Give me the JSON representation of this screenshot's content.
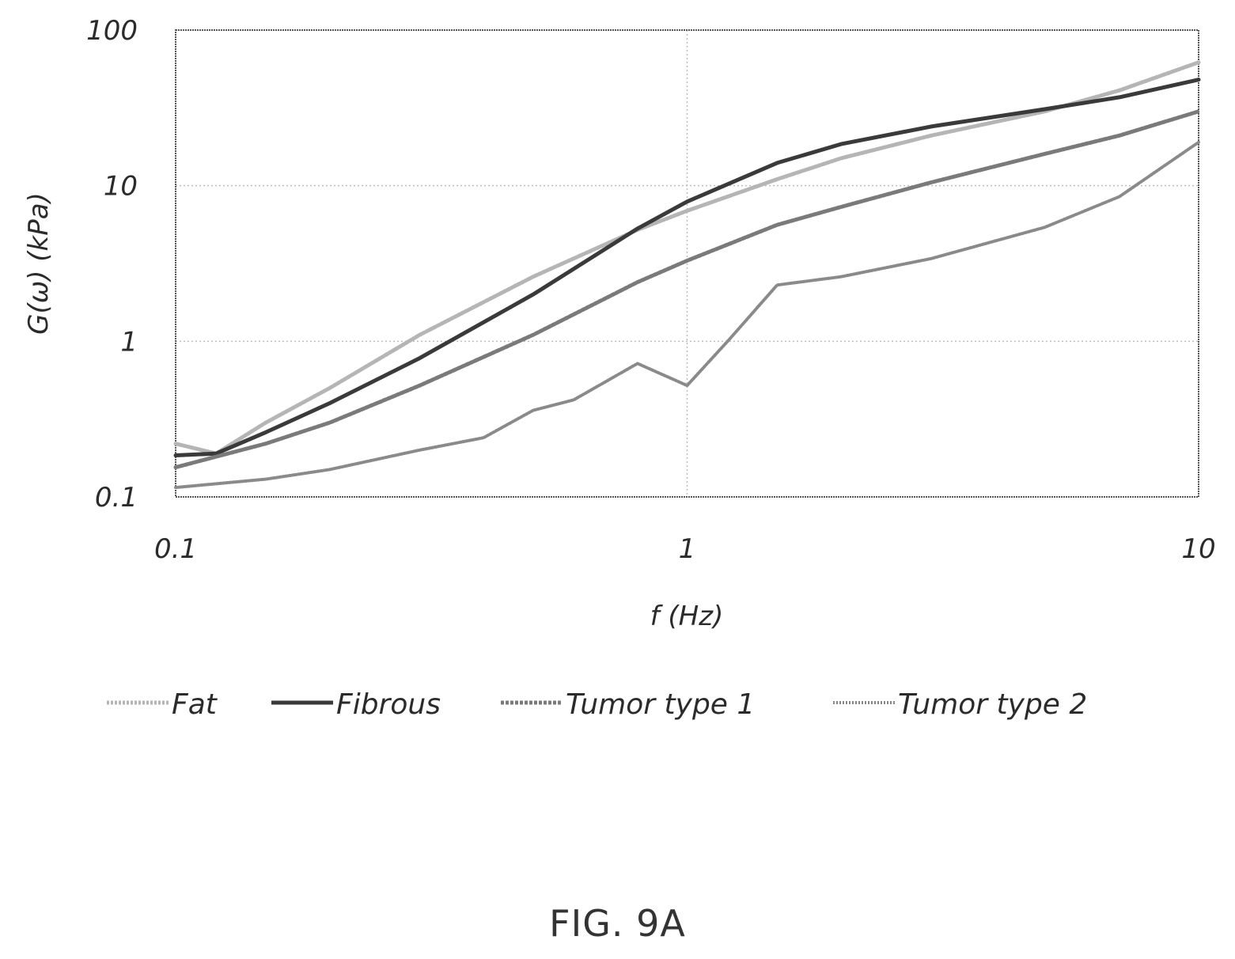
{
  "chart_data": {
    "type": "line",
    "xlabel": "f (Hz)",
    "ylabel": "G(ω) (kPa)",
    "xscale": "log",
    "yscale": "log",
    "xlim": [
      0.1,
      10
    ],
    "ylim": [
      0.1,
      100
    ],
    "xticks": [
      "0.1",
      "1",
      "10"
    ],
    "yticks": [
      "100",
      "10",
      "1",
      "0.1"
    ],
    "grid": true,
    "legend_position": "bottom",
    "series": [
      {
        "name": "Fat",
        "color": "#b5b5b5",
        "x": [
          0.1,
          0.12,
          0.15,
          0.2,
          0.3,
          0.5,
          0.8,
          1.0,
          1.5,
          2,
          3,
          5,
          7,
          10
        ],
        "y": [
          0.22,
          0.19,
          0.3,
          0.5,
          1.1,
          2.6,
          5.2,
          6.9,
          11.0,
          15.0,
          21.0,
          30.0,
          41.0,
          62.0
        ]
      },
      {
        "name": "Fibrous",
        "color": "#3a3a3a",
        "x": [
          0.1,
          0.12,
          0.15,
          0.2,
          0.3,
          0.5,
          0.8,
          1.0,
          1.5,
          2,
          3,
          5,
          7,
          10
        ],
        "y": [
          0.185,
          0.19,
          0.26,
          0.4,
          0.78,
          2.0,
          5.3,
          7.9,
          14.0,
          18.5,
          24.0,
          31.0,
          37.0,
          48.0
        ]
      },
      {
        "name": "Tumor type 1",
        "color": "#7a7a7a",
        "x": [
          0.1,
          0.15,
          0.2,
          0.3,
          0.5,
          0.8,
          1.0,
          1.5,
          2,
          3,
          5,
          7,
          10
        ],
        "y": [
          0.155,
          0.22,
          0.3,
          0.52,
          1.1,
          2.4,
          3.3,
          5.6,
          7.3,
          10.5,
          16.0,
          21.0,
          30.0
        ]
      },
      {
        "name": "Tumor type 2",
        "color": "#8a8a8a",
        "x": [
          0.1,
          0.15,
          0.2,
          0.3,
          0.4,
          0.5,
          0.6,
          0.8,
          1.0,
          1.2,
          1.5,
          2,
          3,
          5,
          7,
          10
        ],
        "y": [
          0.115,
          0.13,
          0.15,
          0.2,
          0.24,
          0.36,
          0.42,
          0.72,
          0.52,
          1.0,
          2.3,
          2.6,
          3.4,
          5.4,
          8.5,
          19.0
        ]
      }
    ]
  },
  "figure_label": "FIG. 9A"
}
